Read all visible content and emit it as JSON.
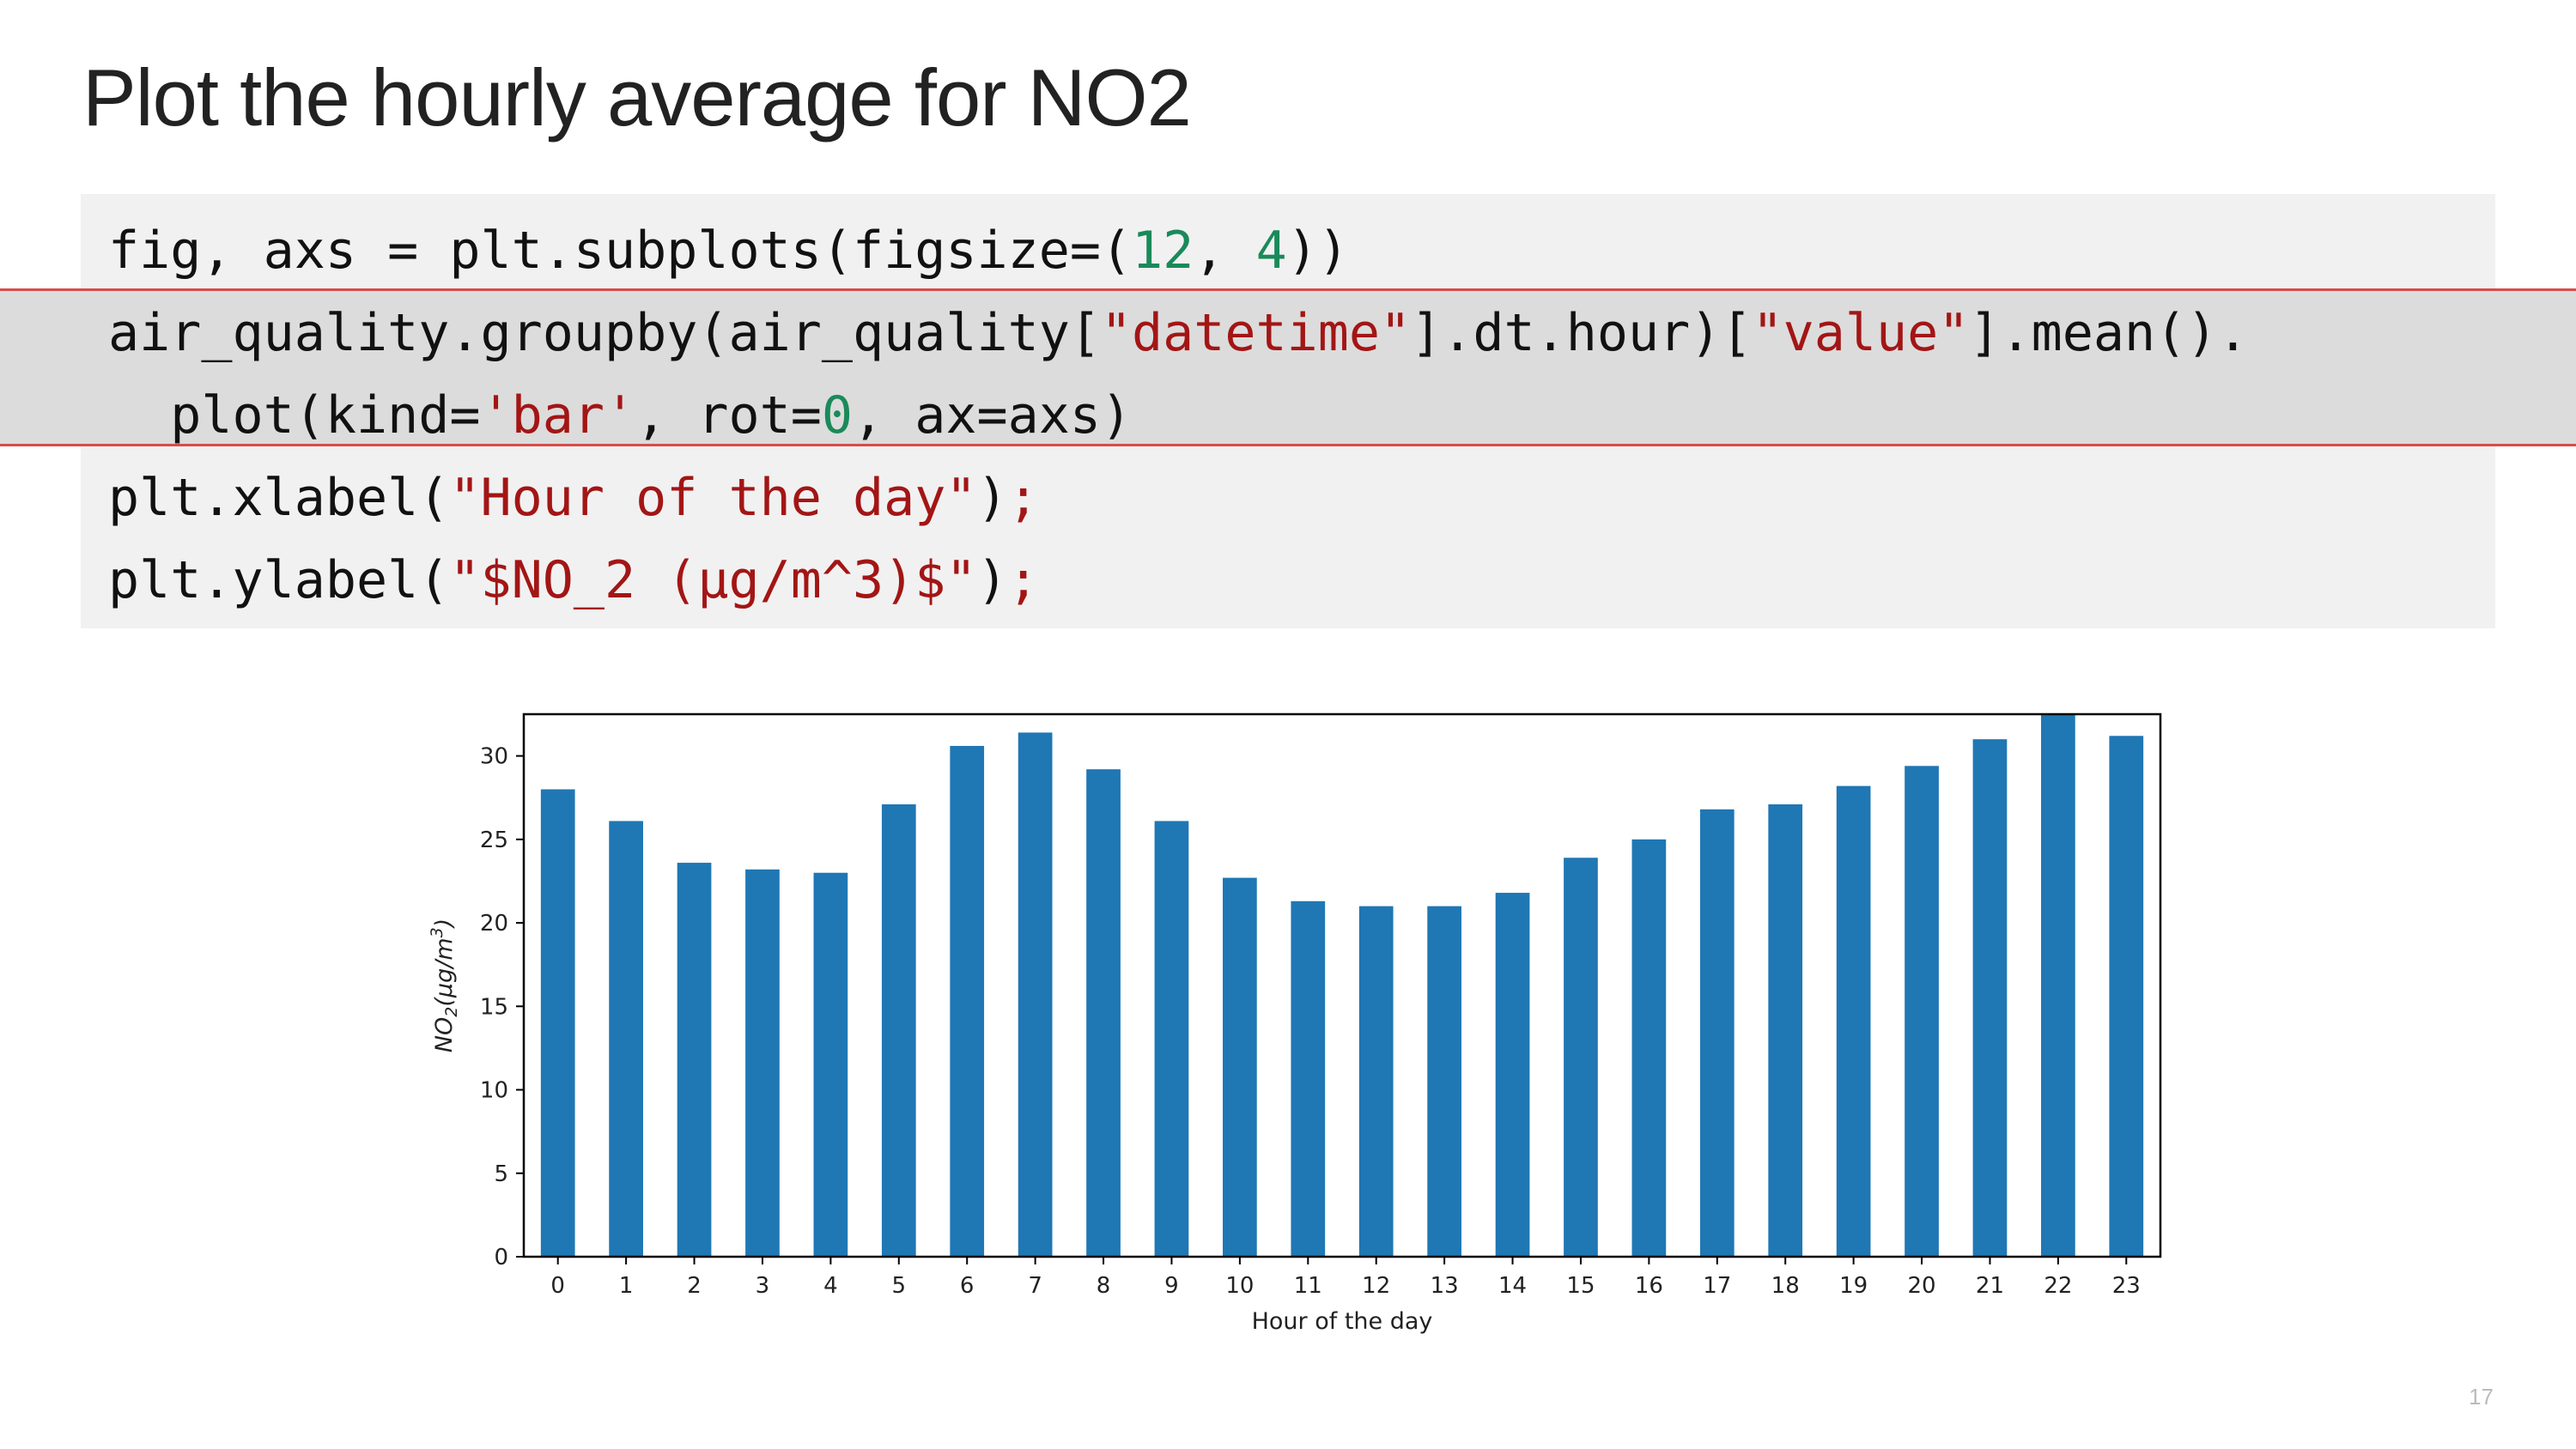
{
  "title": "Plot the hourly average for NO2",
  "code": {
    "line1": {
      "a": "fig, axs = plt.subplots(figsize=(",
      "n1": "12",
      "b": ", ",
      "n2": "4",
      "c": "))"
    },
    "line2": {
      "a": "air_quality.groupby(air_quality[",
      "s1": "\"datetime\"",
      "b": "].dt.hour)[",
      "s2": "\"value\"",
      "c": "].mean()."
    },
    "line3": {
      "a": "  plot(kind=",
      "s1": "'bar'",
      "b": ", rot=",
      "n1": "0",
      "c": ", ax=axs)"
    },
    "line4": {
      "a": "plt.xlabel(",
      "s1": "\"Hour of the day\"",
      "b": ")",
      "semi": ";"
    },
    "line5": {
      "a": "plt.ylabel(",
      "s1": "\"$NO_2 (µg/m^3)$\"",
      "b": ")",
      "semi": ";"
    }
  },
  "chart_data": {
    "type": "bar",
    "categories": [
      "0",
      "1",
      "2",
      "3",
      "4",
      "5",
      "6",
      "7",
      "8",
      "9",
      "10",
      "11",
      "12",
      "13",
      "14",
      "15",
      "16",
      "17",
      "18",
      "19",
      "20",
      "21",
      "22",
      "23"
    ],
    "values": [
      28.0,
      26.1,
      23.6,
      23.2,
      23.0,
      27.1,
      30.6,
      31.4,
      29.2,
      26.1,
      22.7,
      21.3,
      21.0,
      21.0,
      21.8,
      23.9,
      25.0,
      26.8,
      27.1,
      28.2,
      29.4,
      31.0,
      32.5,
      31.2
    ],
    "xlabel": "Hour of the day",
    "ylabel_main": "NO",
    "ylabel_sub": "2",
    "ylabel_paren_open": "(",
    "ylabel_unit": "μg/m",
    "ylabel_sup": "3",
    "ylabel_paren_close": ")",
    "yticks": [
      0,
      5,
      10,
      15,
      20,
      25,
      30
    ],
    "ylim": [
      0,
      32.5
    ],
    "bar_color": "#1f77b4",
    "grid": false
  },
  "page_number": "17"
}
